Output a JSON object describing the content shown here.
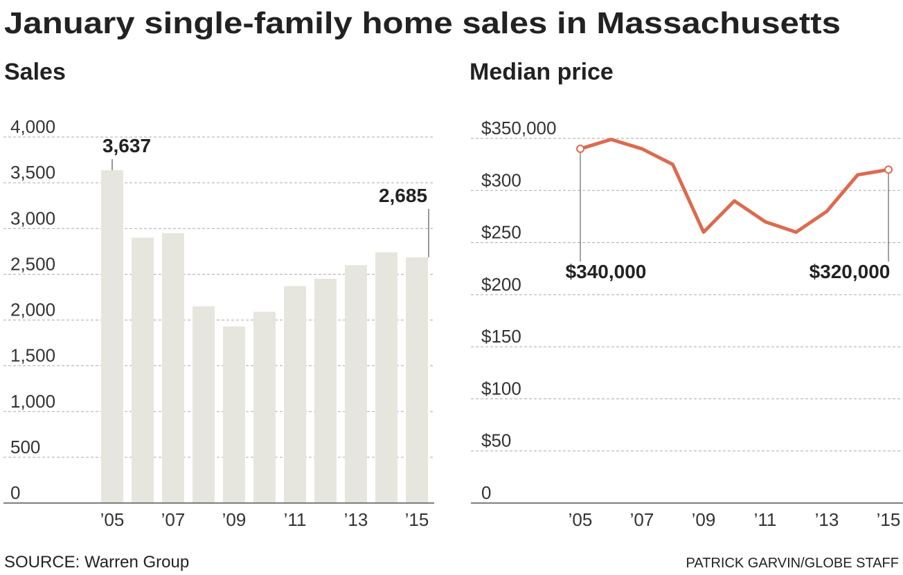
{
  "title": "January single-family home sales in Massachusetts",
  "source": "SOURCE: Warren Group",
  "credit": "PATRICK GARVIN/GLOBE STAFF",
  "chart_data": [
    {
      "type": "bar",
      "title": "Sales",
      "categories": [
        "’05",
        null,
        "’07",
        null,
        "’09",
        null,
        "’11",
        null,
        "’13",
        null,
        "’15"
      ],
      "values": [
        3637,
        2900,
        2950,
        2150,
        1930,
        2090,
        2370,
        2450,
        2600,
        2740,
        2685
      ],
      "value_labels": [
        "3,637",
        null,
        null,
        null,
        null,
        null,
        null,
        null,
        null,
        null,
        "2,685"
      ],
      "color": "#e6e6df",
      "ylim": [
        0,
        4000
      ],
      "yticks": [
        0,
        500,
        {
          "value": 1000,
          "label": "1,000"
        },
        {
          "value": 1500,
          "label": "1,500"
        },
        {
          "value": 2000,
          "label": "2,000"
        },
        {
          "value": 2500,
          "label": "2,500"
        },
        {
          "value": 3000,
          "label": "3,000"
        },
        {
          "value": 3500,
          "label": "3,500"
        },
        {
          "value": 4000,
          "label": "4,000"
        }
      ],
      "grid": true
    },
    {
      "type": "line",
      "title": "Median price",
      "categories": [
        "’05",
        null,
        "’07",
        null,
        "’09",
        null,
        "’11",
        null,
        "’13",
        null,
        "’15"
      ],
      "values": [
        340000,
        349000,
        340000,
        325000,
        260000,
        290000,
        270000,
        260000,
        280000,
        315000,
        320000
      ],
      "value_labels": [
        "$340,000",
        null,
        null,
        null,
        null,
        null,
        null,
        null,
        null,
        null,
        "$320,000"
      ],
      "color": "#dd6a4f",
      "ylim": [
        0,
        350000
      ],
      "yticks": [
        0,
        {
          "value": 50000,
          "label": "$50"
        },
        {
          "value": 100000,
          "label": "$100"
        },
        {
          "value": 150000,
          "label": "$150"
        },
        {
          "value": 200000,
          "label": "$200"
        },
        {
          "value": 250000,
          "label": "$250"
        },
        {
          "value": 300000,
          "label": "$300"
        },
        {
          "value": 350000,
          "label": "$350,000"
        }
      ],
      "grid": true
    }
  ]
}
